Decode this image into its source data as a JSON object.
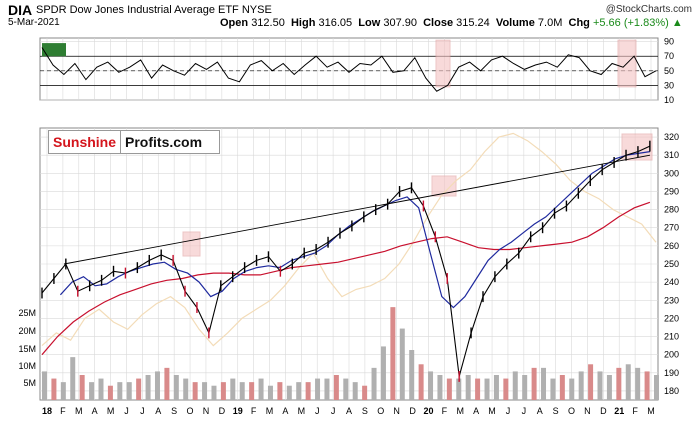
{
  "header": {
    "symbol": "DIA",
    "title": "SPDR Dow Jones Industrial Average ETF",
    "exchange": "NYSE",
    "date": "5-Mar-2021",
    "open_label": "Open",
    "open": "312.50",
    "high_label": "High",
    "high": "316.05",
    "low_label": "Low",
    "low": "307.90",
    "close_label": "Close",
    "close": "315.24",
    "volume_label": "Volume",
    "volume": "7.0M",
    "chg_label": "Chg",
    "chg": "+5.66 (+1.83%)",
    "chg_arrow": "▲",
    "watermark": "@StockCharts.com"
  },
  "logo": {
    "part1": "Sunshine",
    "part2": "Profits.com"
  },
  "colors": {
    "price_up": "#000000",
    "price_down": "#c8102e",
    "ma_short": "#1f2a9e",
    "ma_long": "#c8102e",
    "ratio_line": "#f3dcb8",
    "volume": "#b0b0b0",
    "volume_red": "#d98a8a",
    "highlight": "#f4c2c2",
    "rsi_fill": "#2e7d32",
    "grid": "#d9d9d9"
  },
  "chart_data": [
    {
      "type": "line",
      "panel": "indicator",
      "ylim": [
        10,
        95
      ],
      "ticks": [
        90,
        70,
        50,
        30,
        10
      ],
      "reference_levels": [
        70,
        50,
        30
      ],
      "series": [
        {
          "values": [
            82,
            58,
            45,
            60,
            38,
            55,
            62,
            48,
            55,
            65,
            40,
            58,
            50,
            44,
            60,
            52,
            62,
            40,
            35,
            58,
            64,
            50,
            60,
            45,
            58,
            70,
            55,
            62,
            48,
            60,
            58,
            70,
            48,
            50,
            68,
            40,
            22,
            30,
            55,
            62,
            50,
            65,
            70,
            60,
            52,
            58,
            62,
            55,
            72,
            68,
            50,
            45,
            60,
            55,
            70,
            42,
            50
          ]
        }
      ]
    },
    {
      "type": "line",
      "panel": "price",
      "ylim": [
        175,
        325
      ],
      "ticks": [
        320,
        310,
        300,
        290,
        280,
        270,
        260,
        250,
        240,
        230,
        220,
        210,
        200,
        190,
        180
      ],
      "x_ticks": [
        "18",
        "F",
        "M",
        "A",
        "M",
        "J",
        "J",
        "A",
        "S",
        "O",
        "N",
        "D",
        "19",
        "F",
        "M",
        "A",
        "M",
        "J",
        "J",
        "A",
        "S",
        "O",
        "N",
        "D",
        "20",
        "F",
        "M",
        "A",
        "M",
        "J",
        "J",
        "A",
        "S",
        "O",
        "N",
        "D",
        "21",
        "F",
        "M"
      ],
      "series": [
        {
          "name": "price",
          "values": [
            234,
            242,
            250,
            235,
            238,
            241,
            246,
            245,
            248,
            252,
            255,
            252,
            235,
            226,
            212,
            238,
            243,
            248,
            252,
            254,
            246,
            250,
            256,
            258,
            262,
            267,
            271,
            276,
            280,
            283,
            290,
            292,
            282,
            265,
            242,
            188,
            212,
            232,
            243,
            250,
            256,
            265,
            270,
            278,
            282,
            289,
            296,
            302,
            306,
            310,
            312,
            315
          ]
        },
        {
          "name": "ma_short",
          "values": [
            233,
            240,
            243,
            238,
            239,
            243,
            246,
            248,
            250,
            251,
            247,
            245,
            240,
            232,
            235,
            242,
            246,
            248,
            249,
            248,
            252,
            254,
            256,
            260,
            266,
            271,
            275,
            279,
            282,
            285,
            287,
            281,
            256,
            232,
            226,
            232,
            242,
            252,
            258,
            262,
            267,
            272,
            276,
            282,
            288,
            294,
            300,
            304,
            308,
            310,
            311,
            312
          ]
        },
        {
          "name": "ma_long",
          "values": [
            200,
            210,
            218,
            224,
            229,
            233,
            236,
            239,
            241,
            242,
            244,
            245,
            245,
            244,
            244,
            246,
            248,
            249,
            250,
            251,
            253,
            255,
            257,
            260,
            262,
            264,
            265,
            262,
            259,
            258,
            258,
            259,
            260,
            261,
            262,
            265,
            270,
            276,
            281,
            284
          ]
        },
        {
          "name": "ratio_line",
          "values": [
            205,
            212,
            208,
            220,
            225,
            218,
            214,
            222,
            228,
            232,
            226,
            214,
            205,
            212,
            220,
            225,
            230,
            238,
            248,
            256,
            242,
            232,
            236,
            238,
            242,
            250,
            262,
            276,
            288,
            296,
            302,
            312,
            320,
            322,
            318,
            312,
            305,
            296,
            290,
            286,
            280,
            276,
            272,
            262
          ]
        }
      ],
      "trendline": [
        250,
        310
      ],
      "highlights": 4
    },
    {
      "type": "bar",
      "panel": "volume",
      "y_ticks": [
        "25M",
        "20M",
        "15M",
        "10M",
        "5M"
      ],
      "values": [
        8,
        6,
        5,
        12,
        7,
        5,
        6,
        4,
        5,
        5,
        6,
        7,
        8,
        9,
        7,
        6,
        5,
        5,
        4,
        5,
        6,
        5,
        5,
        6,
        4,
        5,
        4,
        5,
        5,
        6,
        6,
        7,
        6,
        5,
        4,
        9,
        15,
        26,
        20,
        14,
        10,
        8,
        7,
        6,
        6,
        7,
        6,
        6,
        7,
        6,
        8,
        7,
        9,
        9,
        6,
        7,
        6,
        8,
        10,
        8,
        7,
        9,
        10,
        9,
        8,
        7
      ]
    }
  ]
}
